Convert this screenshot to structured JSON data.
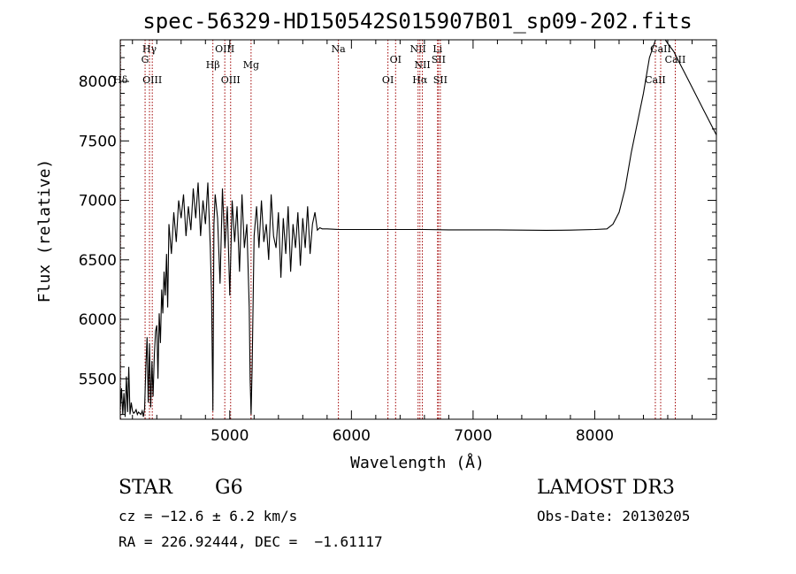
{
  "chart_data": {
    "type": "line",
    "title": "spec-56329-HD150542S015907B01_sp09-202.fits",
    "xlabel": "Wavelength (Å)",
    "ylabel": "Flux (relative)",
    "xlim": [
      4100,
      9000
    ],
    "ylim": [
      5160,
      8350
    ],
    "x_ticks": [
      5000,
      6000,
      7000,
      8000
    ],
    "y_ticks": [
      5500,
      6000,
      6500,
      7000,
      7500,
      8000
    ],
    "grid": false,
    "legend": "none",
    "series": [
      {
        "x": [
          4100,
          4110,
          4120,
          4130,
          4140,
          4150,
          4160,
          4170,
          4180,
          4190,
          4200,
          4210,
          4220,
          4230,
          4240,
          4250,
          4260,
          4270,
          4280,
          4290,
          4300,
          4310,
          4320,
          4330,
          4340,
          4350,
          4360,
          4370,
          4380,
          4390,
          4400,
          4410,
          4420,
          4430,
          4440,
          4450,
          4460,
          4470,
          4480,
          4490,
          4500,
          4520,
          4540,
          4560,
          4580,
          4600,
          4620,
          4640,
          4660,
          4680,
          4700,
          4720,
          4740,
          4760,
          4780,
          4800,
          4820,
          4840,
          4850,
          4861,
          4870,
          4880,
          4900,
          4920,
          4940,
          4960,
          4980,
          5000,
          5020,
          5040,
          5060,
          5080,
          5100,
          5120,
          5140,
          5160,
          5167,
          5175,
          5184,
          5200,
          5220,
          5240,
          5260,
          5280,
          5300,
          5320,
          5340,
          5360,
          5380,
          5400,
          5420,
          5440,
          5460,
          5480,
          5500,
          5520,
          5540,
          5560,
          5580,
          5600,
          5620,
          5640,
          5660,
          5680,
          5700,
          5720,
          5740,
          5760,
          5800,
          5900,
          6000,
          6200,
          6400,
          6600,
          6800,
          7000,
          7200,
          7400,
          7600,
          7800,
          8000,
          8100,
          8150,
          8200,
          8250,
          8300,
          8350,
          8400,
          8450,
          8500,
          8530,
          8550,
          8580,
          8600,
          8650,
          8700,
          8750,
          8800,
          8900,
          9000
        ],
        "values": [
          5250,
          5420,
          5200,
          5380,
          5180,
          5520,
          5220,
          5600,
          5200,
          5300,
          5230,
          5210,
          5220,
          5240,
          5200,
          5220,
          5210,
          5200,
          5230,
          5180,
          5250,
          5600,
          5850,
          5300,
          5800,
          5260,
          5650,
          5350,
          5700,
          5900,
          5950,
          5500,
          6050,
          5800,
          6250,
          6050,
          6400,
          6200,
          6550,
          6100,
          6800,
          6550,
          6900,
          6650,
          7000,
          6850,
          7050,
          6700,
          6950,
          6750,
          7100,
          6850,
          7150,
          6700,
          7000,
          6800,
          7150,
          6600,
          6200,
          5230,
          6800,
          7050,
          6850,
          6300,
          7100,
          6600,
          6950,
          6200,
          7000,
          6650,
          6950,
          6400,
          7050,
          6600,
          6800,
          6100,
          5500,
          5200,
          5600,
          6700,
          6950,
          6600,
          7000,
          6650,
          6800,
          6500,
          7050,
          6700,
          6600,
          6900,
          6350,
          6850,
          6550,
          6950,
          6400,
          6800,
          6600,
          6900,
          6450,
          6850,
          6600,
          6950,
          6550,
          6800,
          6900,
          6750,
          6770,
          6760,
          6760,
          6755,
          6755,
          6755,
          6755,
          6755,
          6752,
          6752,
          6752,
          6750,
          6748,
          6750,
          6755,
          6760,
          6800,
          6900,
          7100,
          7400,
          7650,
          7900,
          8200,
          8380,
          8400,
          8380,
          8350,
          8320,
          8250,
          8150,
          8050,
          7950,
          7750,
          7550
        ]
      }
    ],
    "line_markers": [
      {
        "label": "Hδ",
        "x": 4102,
        "row": 3
      },
      {
        "label": "Hγ",
        "x": 4340,
        "row": 0
      },
      {
        "label": "G",
        "x": 4304,
        "row": 1
      },
      {
        "label": "OIII",
        "x": 4363,
        "row": 3
      },
      {
        "label": "Hβ",
        "x": 4861,
        "row": 2
      },
      {
        "label": "OIII",
        "x": 4959,
        "row": 0
      },
      {
        "label": "OIII",
        "x": 5007,
        "row": 3
      },
      {
        "label": "Mg",
        "x": 5175,
        "row": 2
      },
      {
        "label": "Na",
        "x": 5893,
        "row": 0
      },
      {
        "label": "OI",
        "x": 6300,
        "row": 3
      },
      {
        "label": "OI",
        "x": 6363,
        "row": 1
      },
      {
        "label": "NII",
        "x": 6548,
        "row": 0
      },
      {
        "label": "Hα",
        "x": 6563,
        "row": 3
      },
      {
        "label": "NII",
        "x": 6583,
        "row": 2
      },
      {
        "label": "Li",
        "x": 6708,
        "row": 0
      },
      {
        "label": "SII",
        "x": 6716,
        "row": 1
      },
      {
        "label": "SII",
        "x": 6731,
        "row": 3
      },
      {
        "label": "CaII",
        "x": 8498,
        "row": 3
      },
      {
        "label": "CaII",
        "x": 8542,
        "row": 0
      },
      {
        "label": "CaII",
        "x": 8662,
        "row": 1
      }
    ]
  },
  "info": {
    "object_class": "STAR",
    "subclass": "G6",
    "survey": "LAMOST DR3",
    "redshift": "cz = −12.6 ± 6.2 km/s",
    "obs_date": "Obs-Date: 20130205",
    "coords": "RA = 226.92444, DEC =  −1.61117"
  }
}
